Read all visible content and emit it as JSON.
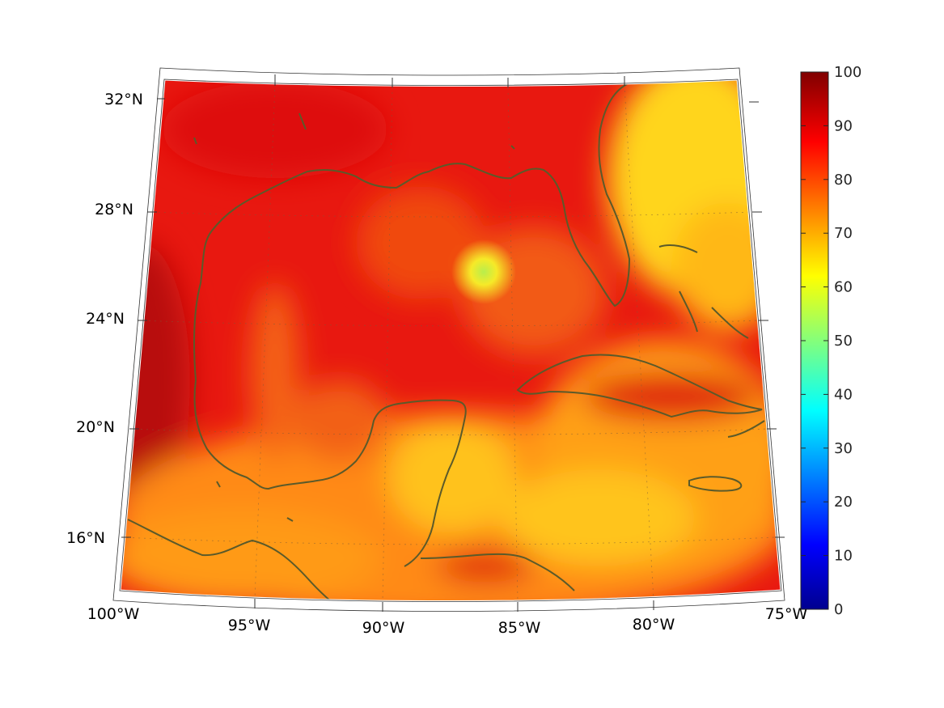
{
  "map": {
    "lon_labels": [
      "100°W",
      "95°W",
      "90°W",
      "85°W",
      "80°W",
      "75°W"
    ],
    "lat_labels": [
      "16°N",
      "20°N",
      "24°N",
      "28°N",
      "32°N"
    ],
    "coastline_color": "#5a5a2a",
    "field_colors": {
      "high": "#e01010",
      "mid": "#ff7a10",
      "low": "#ffd21a"
    }
  },
  "colorbar": {
    "ticks": [
      "0",
      "10",
      "20",
      "30",
      "40",
      "50",
      "60",
      "70",
      "80",
      "90",
      "100"
    ],
    "colormap": "jet",
    "min": 0,
    "max": 100
  }
}
